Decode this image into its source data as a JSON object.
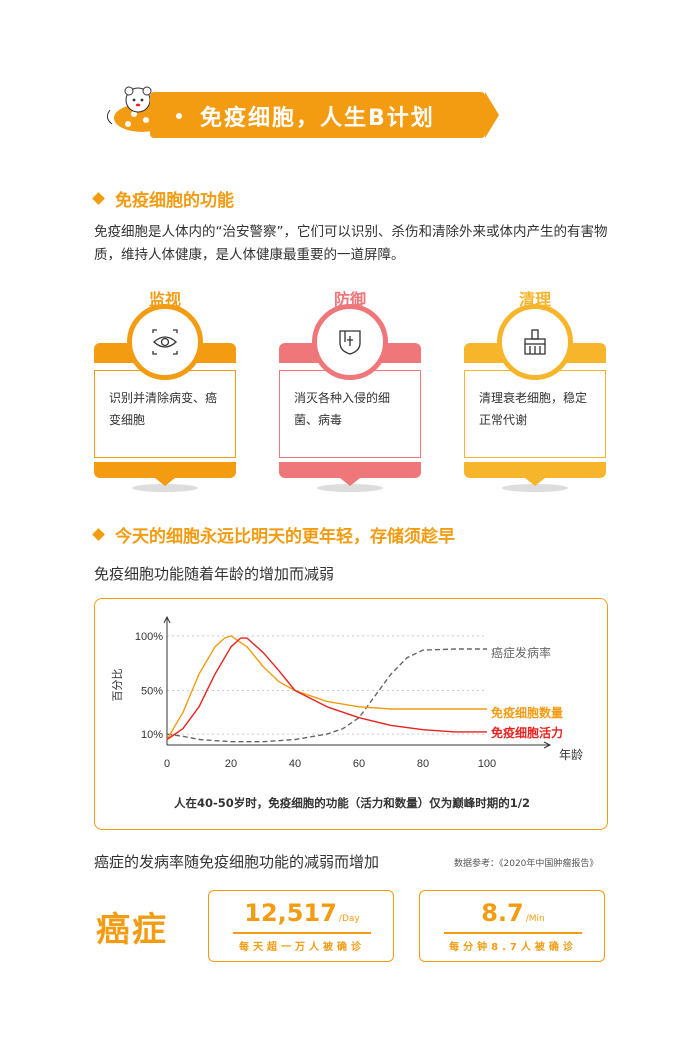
{
  "banner": {
    "title": "免疫细胞，人生B计划"
  },
  "section1": {
    "heading": "免疫细胞的功能",
    "intro": "免疫细胞是人体内的“治安警察”，它们可以识别、杀伤和清除外来或体内产生的有害物质，维持人体健康，是人体健康最重要的一道屏障。",
    "cards": [
      {
        "title": "监视",
        "body": "识别并清除病变、癌变细胞",
        "icon": "eye-icon",
        "color": "#f39c12"
      },
      {
        "title": "防御",
        "body": "消灭各种入侵的细菌、病毒",
        "icon": "shield-icon",
        "color": "#ef7679"
      },
      {
        "title": "清理",
        "body": "清理衰老细胞，稳定正常代谢",
        "icon": "broom-icon",
        "color": "#f7b52c"
      }
    ]
  },
  "section2": {
    "heading": "今天的细胞永远比明天的更年轻，存储须趁早",
    "subhead": "免疫细胞功能随着年龄的增加而减弱",
    "caption": "人在40-50岁时，免疫细胞的功能（活力和数量）仅为巅峰时期的1/2"
  },
  "chart_data": {
    "type": "line",
    "xlabel": "年龄",
    "ylabel": "百分比",
    "x_ticks": [
      "0",
      "20",
      "40",
      "60",
      "80",
      "100"
    ],
    "y_ticks": [
      "10%",
      "50%",
      "100%"
    ],
    "xlim": [
      0,
      100
    ],
    "ylim": [
      0,
      110
    ],
    "series": [
      {
        "name": "癌症发病率",
        "color": "#666666",
        "style": "dashed",
        "x": [
          0,
          5,
          10,
          20,
          30,
          40,
          50,
          55,
          60,
          65,
          70,
          75,
          80,
          90,
          100
        ],
        "y": [
          10,
          8,
          5,
          3,
          3,
          5,
          10,
          15,
          25,
          45,
          65,
          80,
          87,
          88,
          88
        ]
      },
      {
        "name": "免疫细胞数量",
        "color": "#f39c12",
        "style": "solid",
        "x": [
          0,
          5,
          10,
          15,
          18,
          20,
          25,
          30,
          35,
          40,
          50,
          60,
          70,
          80,
          90,
          100
        ],
        "y": [
          5,
          30,
          65,
          90,
          98,
          100,
          90,
          72,
          58,
          50,
          40,
          35,
          33,
          33,
          33,
          33
        ]
      },
      {
        "name": "免疫细胞活力",
        "color": "#e8231f",
        "style": "solid",
        "x": [
          0,
          5,
          10,
          15,
          20,
          23,
          25,
          30,
          35,
          40,
          50,
          60,
          70,
          80,
          90,
          100
        ],
        "y": [
          5,
          15,
          35,
          65,
          90,
          98,
          98,
          85,
          68,
          50,
          35,
          25,
          18,
          14,
          12,
          12
        ]
      }
    ]
  },
  "section3": {
    "line": "癌症的发病率随免疫细胞功能的减弱而增加",
    "source": "数据参考：《2020年中国肿瘤报告》",
    "big_label": "癌症",
    "stats": [
      {
        "number": "12,517",
        "unit": "/Day",
        "desc": "每天超一万人被确诊"
      },
      {
        "number": "8.7",
        "unit": "/Min",
        "desc": "每分钟8.7人被确诊"
      }
    ]
  }
}
